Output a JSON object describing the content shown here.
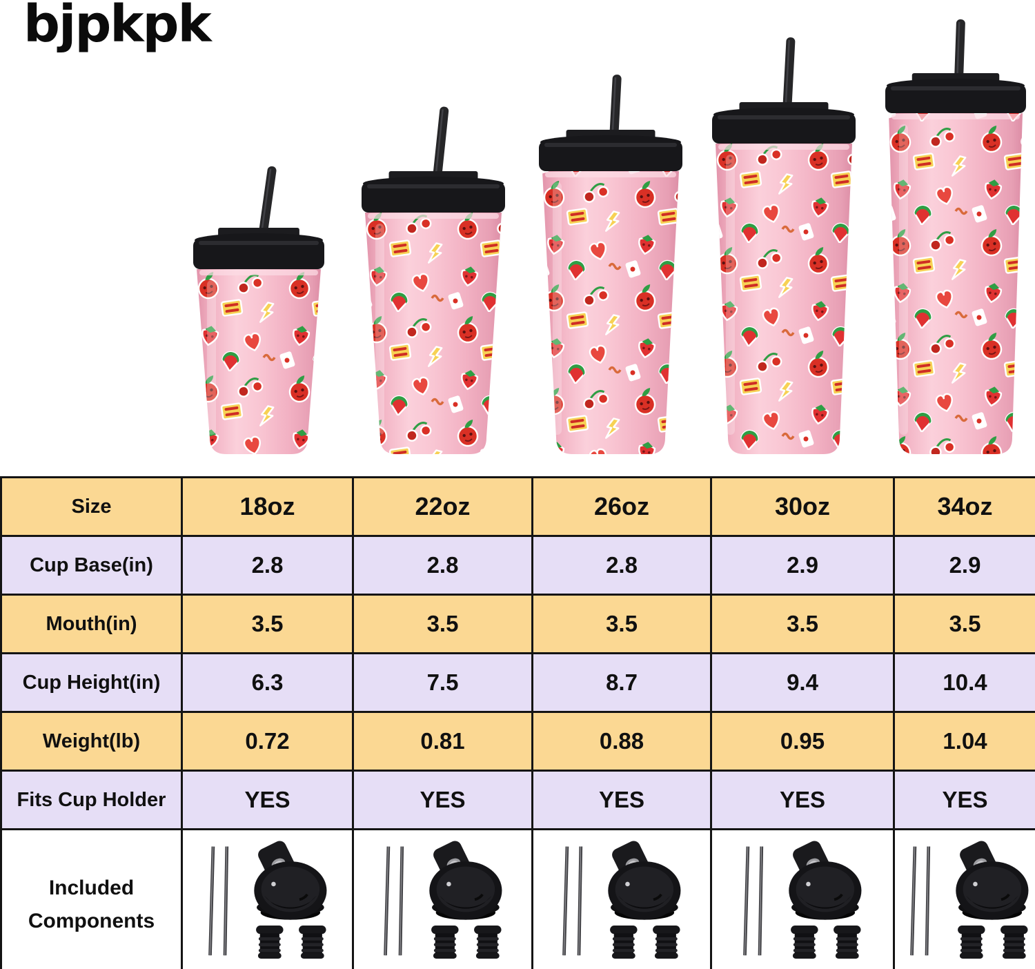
{
  "brand": {
    "logo_text": "bjpkpk"
  },
  "products": {
    "description": "Pink insulated tumblers with red fruit cartoon sticker pattern, black flip lid and straw",
    "sizes": [
      "18oz",
      "22oz",
      "26oz",
      "30oz",
      "34oz"
    ]
  },
  "chart_data": {
    "type": "table",
    "columns": [
      "Size",
      "18oz",
      "22oz",
      "26oz",
      "30oz",
      "34oz"
    ],
    "rows": [
      {
        "label": "Cup Base(in)",
        "values": [
          "2.8",
          "2.8",
          "2.8",
          "2.9",
          "2.9"
        ]
      },
      {
        "label": "Mouth(in)",
        "values": [
          "3.5",
          "3.5",
          "3.5",
          "3.5",
          "3.5"
        ]
      },
      {
        "label": "Cup Height(in)",
        "values": [
          "6.3",
          "7.5",
          "8.7",
          "9.4",
          "10.4"
        ]
      },
      {
        "label": "Weight(lb)",
        "values": [
          "0.72",
          "0.81",
          "0.88",
          "0.95",
          "1.04"
        ]
      },
      {
        "label": "Fits Cup Holder",
        "values": [
          "YES",
          "YES",
          "YES",
          "YES",
          "YES"
        ]
      }
    ],
    "footer_row": {
      "label": "Included Components",
      "items": [
        "2 metal straws",
        "flip lid",
        "2 straw stoppers"
      ],
      "shown_in_each_size_column": true
    }
  },
  "colors": {
    "row_yellow": "#fbd893",
    "row_lavender": "#e6def6",
    "table_border": "#141414",
    "tumbler_pink": "#f7c0ce",
    "lid_black": "#18181a",
    "background": "#ffffff"
  }
}
